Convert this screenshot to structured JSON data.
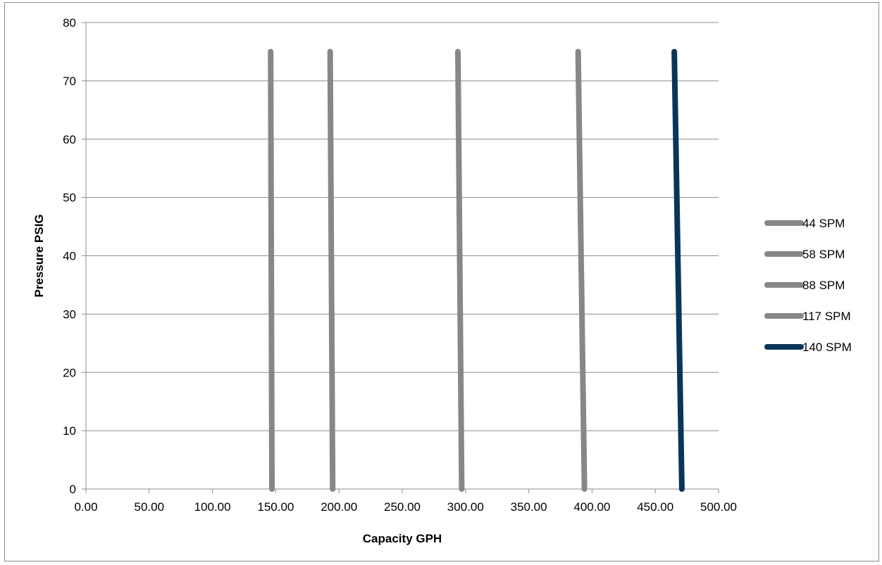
{
  "chart_data": {
    "type": "line",
    "title": "",
    "xlabel": "Capacity GPH",
    "ylabel": "Pressure PSIG",
    "xlim": [
      0,
      500
    ],
    "ylim": [
      0,
      80
    ],
    "x_ticks": [
      0,
      50,
      100,
      150,
      200,
      250,
      300,
      350,
      400,
      450,
      500
    ],
    "x_tick_labels": [
      "0.00",
      "50.00",
      "100.00",
      "150.00",
      "200.00",
      "250.00",
      "300.00",
      "350.00",
      "400.00",
      "450.00",
      "500.00"
    ],
    "y_ticks": [
      0,
      10,
      20,
      30,
      40,
      50,
      60,
      70,
      80
    ],
    "y_tick_labels": [
      "0",
      "10",
      "20",
      "30",
      "40",
      "50",
      "60",
      "70",
      "80"
    ],
    "grid": "horizontal",
    "legend_position": "right",
    "series": [
      {
        "name": "44 SPM",
        "color": "#878787",
        "points": [
          [
            146,
            75
          ],
          [
            147,
            0
          ]
        ]
      },
      {
        "name": "58 SPM",
        "color": "#878787",
        "points": [
          [
            193,
            75
          ],
          [
            195,
            0
          ]
        ]
      },
      {
        "name": "88 SPM",
        "color": "#878787",
        "points": [
          [
            294,
            75
          ],
          [
            297,
            0
          ]
        ]
      },
      {
        "name": "117 SPM",
        "color": "#878787",
        "points": [
          [
            389,
            75
          ],
          [
            394,
            0
          ]
        ]
      },
      {
        "name": "140 SPM",
        "color": "#0b3558",
        "points": [
          [
            465,
            75
          ],
          [
            471,
            0
          ]
        ]
      }
    ]
  }
}
